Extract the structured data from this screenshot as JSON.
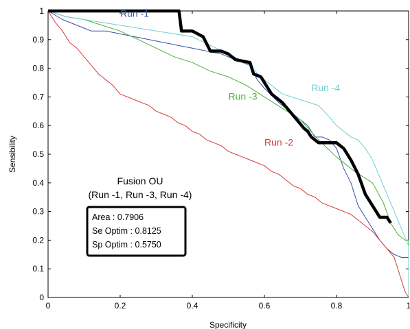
{
  "chart_data": {
    "type": "line",
    "xlabel": "Specificity",
    "ylabel": "Sensibility",
    "xlim": [
      0,
      1
    ],
    "ylim": [
      0,
      1
    ],
    "x_ticks": [
      "0",
      "0.2",
      "0.4",
      "0.6",
      "0.8",
      "1"
    ],
    "y_ticks": [
      "0",
      "0.1",
      "0.2",
      "0.3",
      "0.4",
      "0.5",
      "0.6",
      "0.7",
      "0.8",
      "0.9",
      "1"
    ],
    "grid": false,
    "fusion_title": "Fusion OU",
    "fusion_subtitle": "(Run -1, Run -3, Run -4)",
    "stats": [
      "Area : 0.7906",
      "Se Optim : 0.8125",
      "Sp Optim : 0.5750"
    ],
    "series": [
      {
        "name": "Run -1",
        "color": "#3a4fa8",
        "stroke_width": 1,
        "label_x": 0.2,
        "label_y": 0.98,
        "points": [
          [
            0,
            1
          ],
          [
            0.04,
            0.97
          ],
          [
            0.08,
            0.95
          ],
          [
            0.12,
            0.93
          ],
          [
            0.16,
            0.93
          ],
          [
            0.2,
            0.92
          ],
          [
            0.24,
            0.91
          ],
          [
            0.28,
            0.9
          ],
          [
            0.32,
            0.89
          ],
          [
            0.36,
            0.88
          ],
          [
            0.4,
            0.87
          ],
          [
            0.44,
            0.86
          ],
          [
            0.48,
            0.85
          ],
          [
            0.52,
            0.83
          ],
          [
            0.56,
            0.81
          ],
          [
            0.58,
            0.76
          ],
          [
            0.6,
            0.73
          ],
          [
            0.64,
            0.68
          ],
          [
            0.68,
            0.64
          ],
          [
            0.72,
            0.6
          ],
          [
            0.74,
            0.56
          ],
          [
            0.76,
            0.56
          ],
          [
            0.78,
            0.55
          ],
          [
            0.8,
            0.52
          ],
          [
            0.82,
            0.45
          ],
          [
            0.84,
            0.4
          ],
          [
            0.86,
            0.32
          ],
          [
            0.88,
            0.28
          ],
          [
            0.9,
            0.24
          ],
          [
            0.92,
            0.2
          ],
          [
            0.94,
            0.17
          ],
          [
            0.96,
            0.15
          ],
          [
            0.98,
            0.14
          ],
          [
            1,
            0.14
          ],
          [
            1,
            0
          ]
        ]
      },
      {
        "name": "Run -2",
        "color": "#d93a3a",
        "stroke_width": 1,
        "label_x": 0.6,
        "label_y": 0.53,
        "points": [
          [
            0,
            1
          ],
          [
            0.02,
            0.96
          ],
          [
            0.04,
            0.93
          ],
          [
            0.06,
            0.89
          ],
          [
            0.08,
            0.87
          ],
          [
            0.1,
            0.84
          ],
          [
            0.12,
            0.81
          ],
          [
            0.14,
            0.78
          ],
          [
            0.16,
            0.76
          ],
          [
            0.18,
            0.74
          ],
          [
            0.2,
            0.71
          ],
          [
            0.22,
            0.7
          ],
          [
            0.24,
            0.69
          ],
          [
            0.26,
            0.68
          ],
          [
            0.28,
            0.67
          ],
          [
            0.3,
            0.65
          ],
          [
            0.32,
            0.64
          ],
          [
            0.34,
            0.63
          ],
          [
            0.36,
            0.61
          ],
          [
            0.38,
            0.6
          ],
          [
            0.4,
            0.58
          ],
          [
            0.42,
            0.57
          ],
          [
            0.44,
            0.55
          ],
          [
            0.46,
            0.54
          ],
          [
            0.48,
            0.53
          ],
          [
            0.5,
            0.51
          ],
          [
            0.52,
            0.5
          ],
          [
            0.54,
            0.49
          ],
          [
            0.56,
            0.48
          ],
          [
            0.58,
            0.47
          ],
          [
            0.6,
            0.46
          ],
          [
            0.62,
            0.44
          ],
          [
            0.64,
            0.43
          ],
          [
            0.66,
            0.41
          ],
          [
            0.68,
            0.39
          ],
          [
            0.7,
            0.38
          ],
          [
            0.72,
            0.36
          ],
          [
            0.74,
            0.35
          ],
          [
            0.76,
            0.33
          ],
          [
            0.78,
            0.32
          ],
          [
            0.8,
            0.31
          ],
          [
            0.82,
            0.3
          ],
          [
            0.84,
            0.29
          ],
          [
            0.86,
            0.27
          ],
          [
            0.88,
            0.25
          ],
          [
            0.9,
            0.23
          ],
          [
            0.92,
            0.2
          ],
          [
            0.94,
            0.17
          ],
          [
            0.96,
            0.14
          ],
          [
            0.97,
            0.1
          ],
          [
            0.98,
            0.06
          ],
          [
            0.99,
            0.02
          ],
          [
            1,
            0
          ]
        ]
      },
      {
        "name": "Run -3",
        "color": "#4caf3a",
        "stroke_width": 1,
        "label_x": 0.5,
        "label_y": 0.69,
        "points": [
          [
            0,
            1
          ],
          [
            0.05,
            0.98
          ],
          [
            0.1,
            0.97
          ],
          [
            0.15,
            0.95
          ],
          [
            0.2,
            0.93
          ],
          [
            0.25,
            0.9
          ],
          [
            0.3,
            0.87
          ],
          [
            0.35,
            0.84
          ],
          [
            0.4,
            0.82
          ],
          [
            0.45,
            0.79
          ],
          [
            0.5,
            0.77
          ],
          [
            0.55,
            0.74
          ],
          [
            0.6,
            0.7
          ],
          [
            0.65,
            0.66
          ],
          [
            0.7,
            0.62
          ],
          [
            0.75,
            0.55
          ],
          [
            0.8,
            0.49
          ],
          [
            0.85,
            0.44
          ],
          [
            0.9,
            0.4
          ],
          [
            0.93,
            0.33
          ],
          [
            0.95,
            0.26
          ],
          [
            0.97,
            0.22
          ],
          [
            0.99,
            0.2
          ],
          [
            1,
            0.2
          ],
          [
            1,
            0
          ]
        ]
      },
      {
        "name": "Run -4",
        "color": "#6fcfcf",
        "stroke_width": 1,
        "label_x": 0.73,
        "label_y": 0.72,
        "points": [
          [
            0,
            1
          ],
          [
            0.05,
            0.98
          ],
          [
            0.1,
            0.97
          ],
          [
            0.15,
            0.96
          ],
          [
            0.2,
            0.95
          ],
          [
            0.25,
            0.94
          ],
          [
            0.3,
            0.93
          ],
          [
            0.35,
            0.92
          ],
          [
            0.4,
            0.91
          ],
          [
            0.45,
            0.88
          ],
          [
            0.5,
            0.85
          ],
          [
            0.55,
            0.82
          ],
          [
            0.6,
            0.76
          ],
          [
            0.65,
            0.71
          ],
          [
            0.7,
            0.69
          ],
          [
            0.75,
            0.67
          ],
          [
            0.78,
            0.63
          ],
          [
            0.8,
            0.6
          ],
          [
            0.82,
            0.58
          ],
          [
            0.84,
            0.56
          ],
          [
            0.86,
            0.55
          ],
          [
            0.88,
            0.52
          ],
          [
            0.9,
            0.48
          ],
          [
            0.92,
            0.42
          ],
          [
            0.94,
            0.36
          ],
          [
            0.96,
            0.3
          ],
          [
            0.98,
            0.24
          ],
          [
            1,
            0.18
          ],
          [
            1,
            0
          ]
        ]
      },
      {
        "name": "",
        "color": "#000000",
        "stroke_width": 4.5,
        "points": [
          [
            0,
            1
          ],
          [
            0.363,
            1
          ],
          [
            0.37,
            0.93
          ],
          [
            0.4,
            0.93
          ],
          [
            0.43,
            0.91
          ],
          [
            0.45,
            0.86
          ],
          [
            0.48,
            0.86
          ],
          [
            0.5,
            0.85
          ],
          [
            0.52,
            0.83
          ],
          [
            0.56,
            0.82
          ],
          [
            0.57,
            0.78
          ],
          [
            0.59,
            0.77
          ],
          [
            0.62,
            0.71
          ],
          [
            0.65,
            0.68
          ],
          [
            0.67,
            0.65
          ],
          [
            0.69,
            0.62
          ],
          [
            0.71,
            0.59
          ],
          [
            0.72,
            0.58
          ],
          [
            0.73,
            0.56
          ],
          [
            0.75,
            0.54
          ],
          [
            0.8,
            0.54
          ],
          [
            0.82,
            0.52
          ],
          [
            0.84,
            0.48
          ],
          [
            0.86,
            0.43
          ],
          [
            0.88,
            0.36
          ],
          [
            0.9,
            0.32
          ],
          [
            0.92,
            0.28
          ],
          [
            0.94,
            0.28
          ],
          [
            0.95,
            0.26
          ]
        ]
      }
    ]
  }
}
